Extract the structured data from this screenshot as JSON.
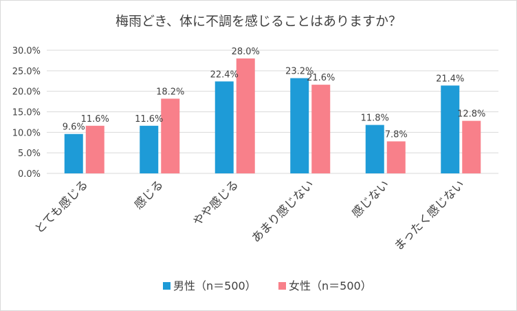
{
  "chart_data": {
    "type": "bar",
    "title": "梅雨どき、体に不調を感じることはありますか？",
    "categories": [
      "とても感じる",
      "感じる",
      "やや感じる",
      "あまり感じない",
      "感じない",
      "まったく感じない"
    ],
    "series": [
      {
        "name": "男性（n＝500）",
        "values": [
          9.6,
          11.6,
          22.4,
          23.2,
          11.8,
          21.4
        ],
        "color": "#1e9bd7"
      },
      {
        "name": "女性（n＝500）",
        "values": [
          11.6,
          18.2,
          28.0,
          21.6,
          7.8,
          12.8
        ],
        "color": "#f8808a"
      }
    ],
    "ylim": [
      0,
      30
    ],
    "yticks": [
      "0.0%",
      "5.0%",
      "10.0%",
      "15.0%",
      "20.0%",
      "25.0%",
      "30.0%"
    ],
    "value_suffix": "%",
    "grid": true,
    "legend_position": "bottom"
  }
}
